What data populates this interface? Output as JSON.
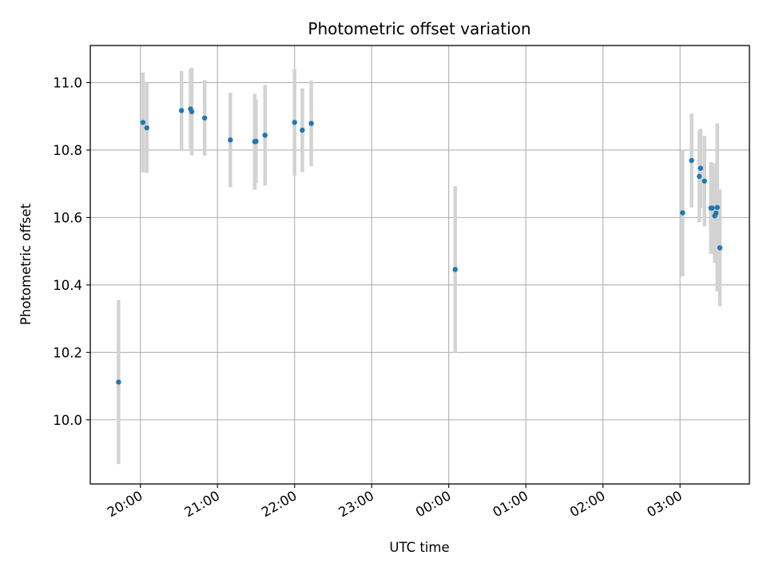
{
  "chart_data": {
    "type": "scatter",
    "title": "Photometric offset variation",
    "xlabel": "UTC time",
    "ylabel": "Photometric offset",
    "grid": true,
    "x_ticks": [
      "20:00",
      "21:00",
      "22:00",
      "23:00",
      "00:00",
      "01:00",
      "02:00",
      "03:00"
    ],
    "y_ticks": [
      "10.0",
      "10.2",
      "10.4",
      "10.6",
      "10.8",
      "11.0"
    ],
    "y_tick_values": [
      10.0,
      10.2,
      10.4,
      10.6,
      10.8,
      11.0
    ],
    "ylim": [
      9.81,
      11.11
    ],
    "xlim": [
      "19:21",
      "03:54"
    ],
    "colors": {
      "points": "#1f77b4",
      "errorbars": "#d3d3d3",
      "grid": "#b0b0b0"
    },
    "series": [
      {
        "points": [
          {
            "x": "19:43",
            "y": 10.112,
            "err": 0.243
          },
          {
            "x": "20:02",
            "y": 10.882,
            "err": 0.148
          },
          {
            "x": "20:05",
            "y": 10.866,
            "err": 0.134
          },
          {
            "x": "20:32",
            "y": 10.917,
            "err": 0.118
          },
          {
            "x": "20:39",
            "y": 10.922,
            "err": 0.118
          },
          {
            "x": "20:40",
            "y": 10.914,
            "err": 0.13
          },
          {
            "x": "20:50",
            "y": 10.895,
            "err": 0.112
          },
          {
            "x": "21:10",
            "y": 10.83,
            "err": 0.14
          },
          {
            "x": "21:29",
            "y": 10.825,
            "err": 0.142
          },
          {
            "x": "21:30",
            "y": 10.826,
            "err": 0.124
          },
          {
            "x": "21:37",
            "y": 10.844,
            "err": 0.149
          },
          {
            "x": "22:00",
            "y": 10.882,
            "err": 0.158
          },
          {
            "x": "22:06",
            "y": 10.859,
            "err": 0.124
          },
          {
            "x": "22:13",
            "y": 10.879,
            "err": 0.127
          },
          {
            "x": "00:05",
            "y": 10.446,
            "err": 0.247
          },
          {
            "x": "03:02",
            "y": 10.614,
            "err": 0.188
          },
          {
            "x": "03:09",
            "y": 10.769,
            "err": 0.139
          },
          {
            "x": "03:15",
            "y": 10.722,
            "err": 0.136
          },
          {
            "x": "03:16",
            "y": 10.746,
            "err": 0.117
          },
          {
            "x": "03:19",
            "y": 10.708,
            "err": 0.134
          },
          {
            "x": "03:24",
            "y": 10.628,
            "err": 0.136
          },
          {
            "x": "03:25",
            "y": 10.628,
            "err": 0.135
          },
          {
            "x": "03:27",
            "y": 10.605,
            "err": 0.14
          },
          {
            "x": "03:28",
            "y": 10.613,
            "err": 0.147
          },
          {
            "x": "03:29",
            "y": 10.63,
            "err": 0.249
          },
          {
            "x": "03:31",
            "y": 10.51,
            "err": 0.173
          }
        ]
      }
    ]
  }
}
